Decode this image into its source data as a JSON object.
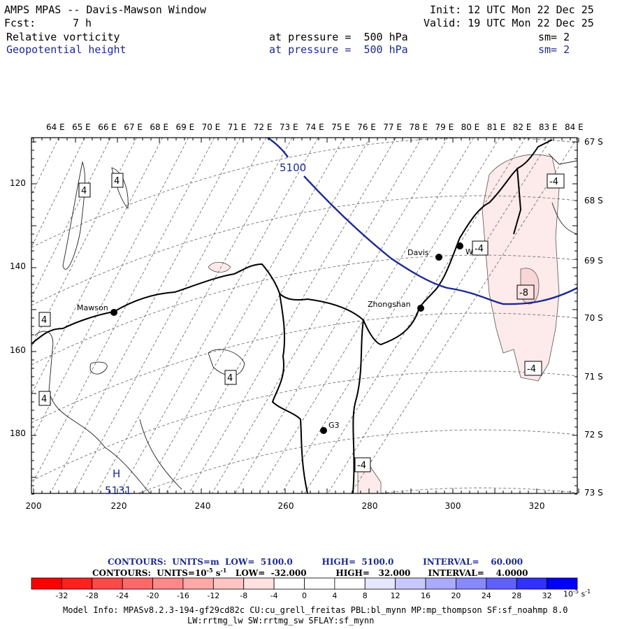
{
  "header": {
    "title": "AMPS MPAS -- Davis-Mawson Window",
    "init": "Init: 12 UTC Mon 22 Dec 25",
    "fcst_label": "Fcst:",
    "fcst_value": "7 h",
    "valid": "Valid: 19 UTC Mon 22 Dec 25",
    "field1": {
      "name": "Relative vorticity",
      "level": "at pressure =  500 hPa",
      "smooth": "sm= 2"
    },
    "field2": {
      "name": "Geopotential height",
      "level": "at pressure =  500 hPa",
      "smooth": "sm= 2"
    }
  },
  "map": {
    "lon_labels": [
      "64 E",
      "65 E",
      "66 E",
      "67 E",
      "68 E",
      "69 E",
      "70 E",
      "71 E",
      "72 E",
      "73 E",
      "74 E",
      "75 E",
      "76 E",
      "77 E",
      "78 E",
      "79 E",
      "80 E",
      "81 E",
      "82 E",
      "83 E",
      "84 E"
    ],
    "lat_labels": [
      "67 S",
      "68 S",
      "69 S",
      "70 S",
      "71 S",
      "72 S",
      "73 S"
    ],
    "grid_x_ticks": [
      "200",
      "220",
      "240",
      "260",
      "280",
      "300",
      "320"
    ],
    "grid_y_ticks": [
      "120",
      "140",
      "160",
      "180"
    ],
    "stations": [
      "Davis",
      "WLP",
      "Mawson",
      "Zhongshan",
      "G3"
    ],
    "contour_labels": {
      "height_5100": "5100",
      "high_marker": "H",
      "high_value": "5131",
      "vort_pos": "4",
      "vort_neg4": "-4",
      "vort_neg8": "-8"
    }
  },
  "contour_info": {
    "line1": "CONTOURS:  UNITS=m  LOW=  5100.0          HIGH=  5100.0          INTERVAL=    60.000",
    "line2_a": "CONTOURS:  UNITS=10",
    "line2_exp": "-5",
    "line2_b": " s",
    "line2_exp2": "-1",
    "line2_c": "   LOW=  -32.000          HIGH=   32.000      INTERVAL=    4.0000"
  },
  "colorbar": {
    "ticks": [
      "-32",
      "-28",
      "-24",
      "-20",
      "-16",
      "-12",
      "-8",
      "-4",
      "0",
      "4",
      "8",
      "12",
      "16",
      "20",
      "24",
      "28",
      "32"
    ],
    "unit_base": "10",
    "unit_exp": "-5",
    "unit_s": "s",
    "unit_exp2": "-1",
    "colors": [
      "#ff0000",
      "#ff2b2b",
      "#ff5555",
      "#ff7777",
      "#ff9999",
      "#ffbbbb",
      "#ffdddd",
      "#fff0f0",
      "#ffffff",
      "#ffffff",
      "#eeeeff",
      "#ccccff",
      "#aaaaff",
      "#8888ff",
      "#5555ff",
      "#2b2bff",
      "#0000ff"
    ]
  },
  "model_info": {
    "line1": "Model Info: MPASv8.2.3-194-gf29cd82c CU:cu_grell_freitas PBL:bl_mynn MP:mp_thompson SF:sf_noahmp 8.0",
    "line2": "LW:rrtmg_lw SW:rrtmg_sw SFLAY:sf_mynn"
  }
}
